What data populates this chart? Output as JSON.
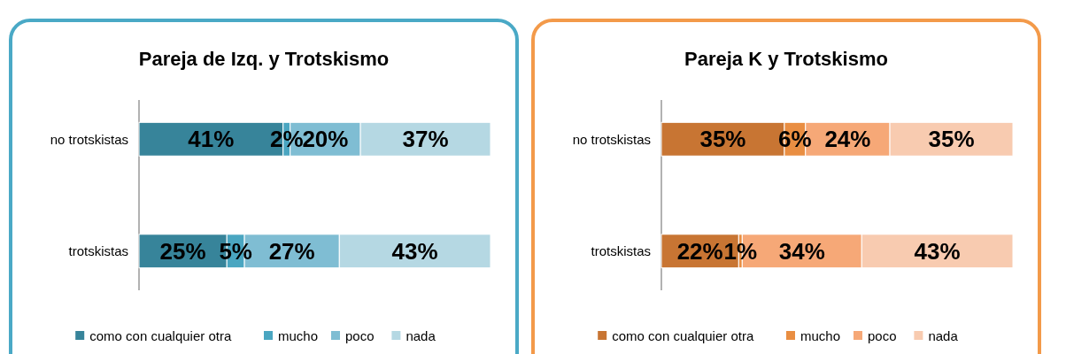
{
  "chart_data": [
    {
      "type": "bar",
      "title": "Pareja  de Izq. y Trotskismo",
      "orientation": "horizontal",
      "stacked": true,
      "legend": "bottom",
      "categories": [
        "no trotskistas",
        "trotskistas"
      ],
      "series": [
        {
          "name": "como con cualquier otra",
          "color": "#37849a",
          "values": [
            41,
            25
          ],
          "value_labels": [
            "41%",
            "25%"
          ]
        },
        {
          "name": "mucho",
          "color": "#4aa6c1",
          "values": [
            2,
            5
          ],
          "value_labels": [
            "2%",
            "5%"
          ]
        },
        {
          "name": "poco",
          "color": "#7fbdd3",
          "values": [
            20,
            27
          ],
          "value_labels": [
            "20%",
            "27%"
          ]
        },
        {
          "name": "nada",
          "color": "#b5d8e3",
          "values": [
            37,
            43
          ],
          "value_labels": [
            "37%",
            "43%"
          ]
        }
      ]
    },
    {
      "type": "bar",
      "title": "Pareja K y Trotskismo",
      "orientation": "horizontal",
      "stacked": true,
      "legend": "bottom",
      "categories": [
        "no trotskistas",
        "trotskistas"
      ],
      "series": [
        {
          "name": "como con cualquier otra",
          "color": "#c87533",
          "values": [
            35,
            22
          ],
          "value_labels": [
            "35%",
            "22%"
          ]
        },
        {
          "name": "mucho",
          "color": "#e98e42",
          "values": [
            6,
            1
          ],
          "value_labels": [
            "6%",
            "1%"
          ]
        },
        {
          "name": "poco",
          "color": "#f6a877",
          "values": [
            24,
            34
          ],
          "value_labels": [
            "24%",
            "34%"
          ]
        },
        {
          "name": "nada",
          "color": "#f8cbb0",
          "values": [
            35,
            43
          ],
          "value_labels": [
            "35%",
            "43%"
          ]
        }
      ]
    }
  ]
}
